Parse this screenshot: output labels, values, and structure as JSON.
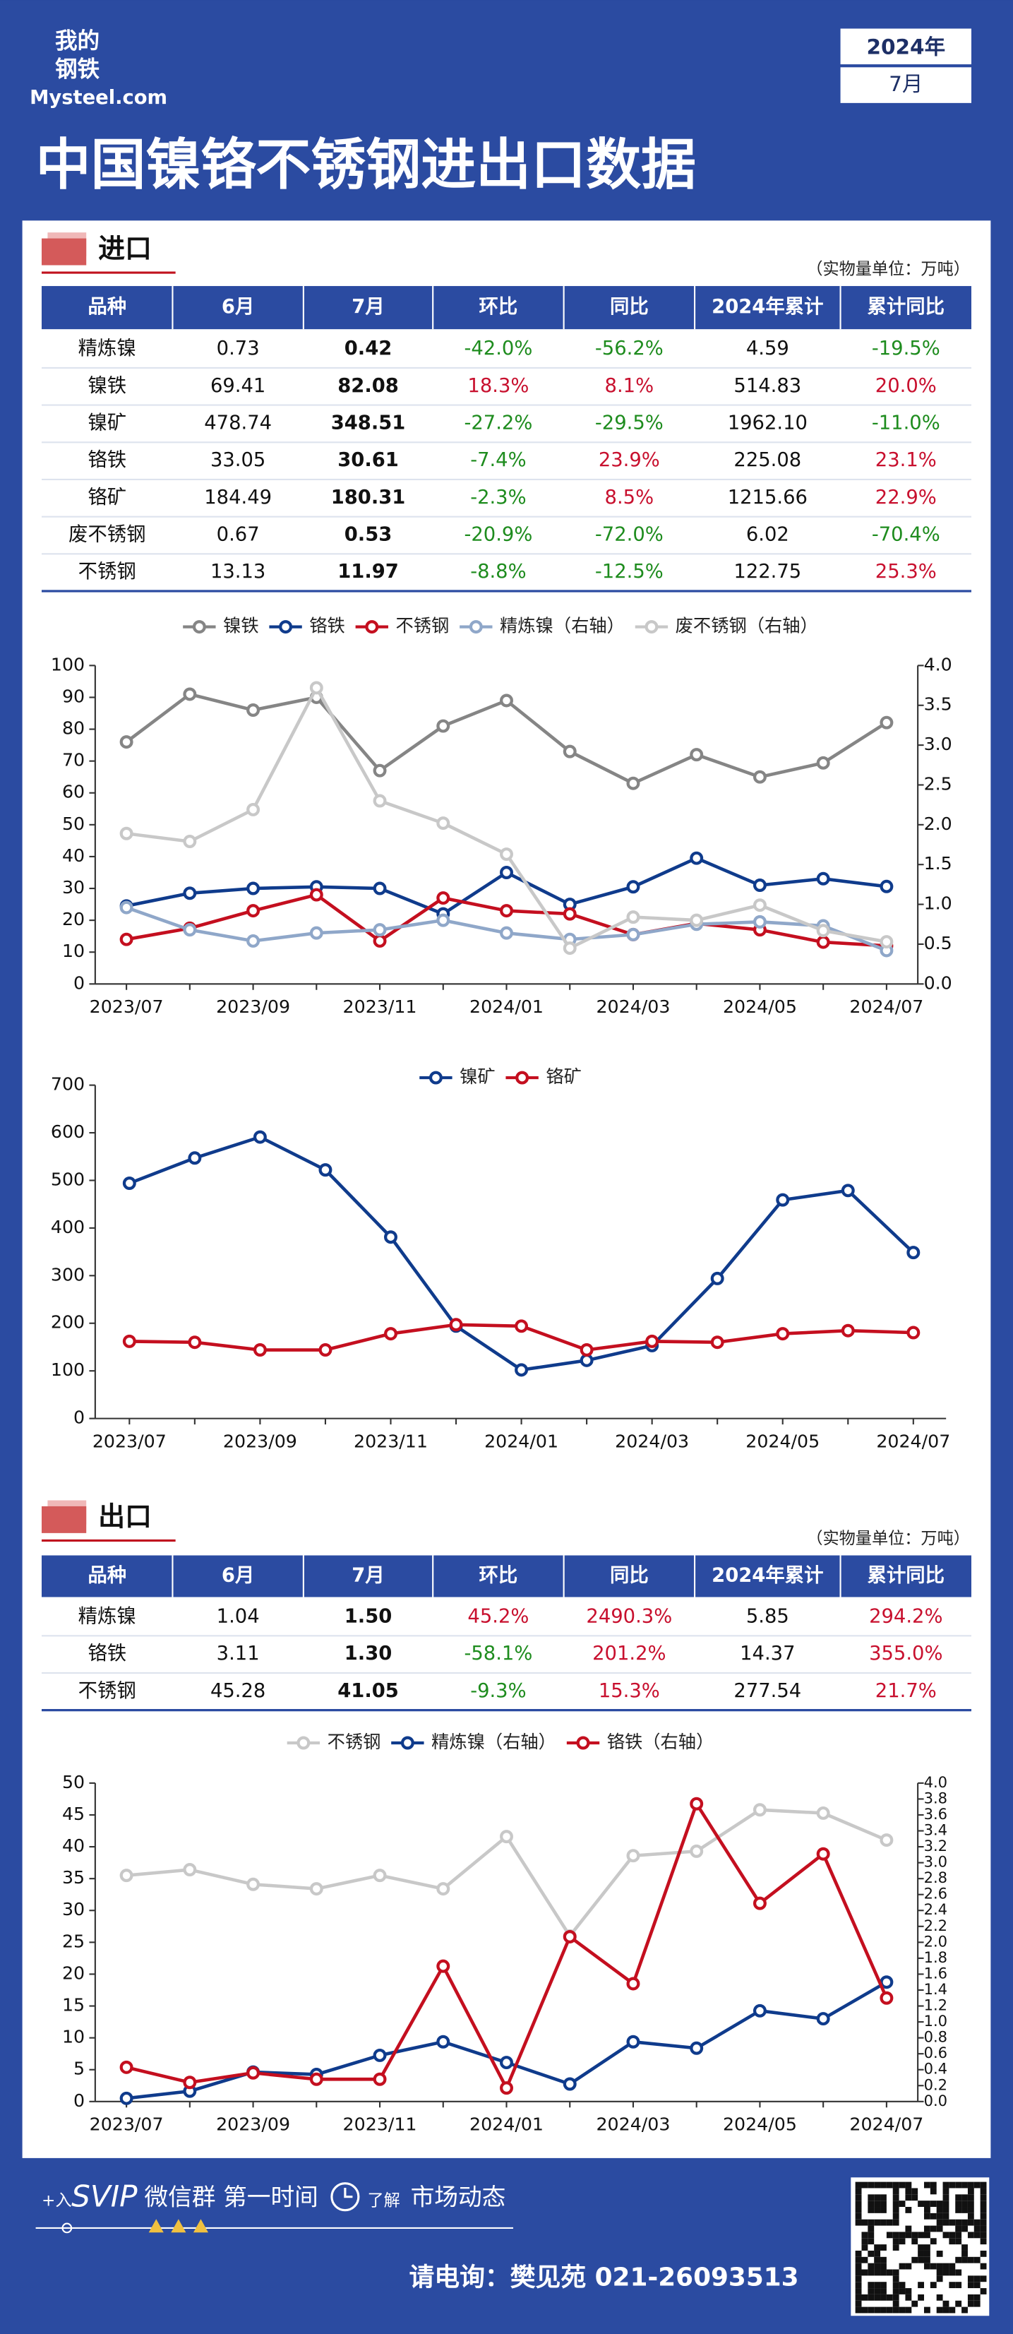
{
  "header": {
    "logo_line1": "我的",
    "logo_line2": "钢铁",
    "brand": "Mysteel.com",
    "year": "2024年",
    "month": "7月",
    "title": "中国镍铬不锈钢进出口数据"
  },
  "import": {
    "title": "进口",
    "unit": "（实物量单位：万吨）",
    "columns": [
      "品种",
      "6月",
      "7月",
      "环比",
      "同比",
      "2024年累计",
      "累计同比"
    ],
    "rows": [
      [
        "精炼镍",
        "0.73",
        "0.42",
        "-42.0%",
        "-56.2%",
        "4.59",
        "-19.5%"
      ],
      [
        "镍铁",
        "69.41",
        "82.08",
        "18.3%",
        "8.1%",
        "514.83",
        "20.0%"
      ],
      [
        "镍矿",
        "478.74",
        "348.51",
        "-27.2%",
        "-29.5%",
        "1962.10",
        "-11.0%"
      ],
      [
        "铬铁",
        "33.05",
        "30.61",
        "-7.4%",
        "23.9%",
        "225.08",
        "23.1%"
      ],
      [
        "铬矿",
        "184.49",
        "180.31",
        "-2.3%",
        "8.5%",
        "1215.66",
        "22.9%"
      ],
      [
        "废不锈钢",
        "0.67",
        "0.53",
        "-20.9%",
        "-72.0%",
        "6.02",
        "-70.4%"
      ],
      [
        "不锈钢",
        "13.13",
        "11.97",
        "-8.8%",
        "-12.5%",
        "122.75",
        "25.3%"
      ]
    ]
  },
  "export": {
    "title": "出口",
    "unit": "（实物量单位：万吨）",
    "columns": [
      "品种",
      "6月",
      "7月",
      "环比",
      "同比",
      "2024年累计",
      "累计同比"
    ],
    "rows": [
      [
        "精炼镍",
        "1.04",
        "1.50",
        "45.2%",
        "2490.3%",
        "5.85",
        "294.2%"
      ],
      [
        "铬铁",
        "3.11",
        "1.30",
        "-58.1%",
        "201.2%",
        "14.37",
        "355.0%"
      ],
      [
        "不锈钢",
        "45.28",
        "41.05",
        "-9.3%",
        "15.3%",
        "277.54",
        "21.7%"
      ]
    ]
  },
  "chart_data": [
    {
      "type": "line",
      "categories": [
        "2023/07",
        null,
        "2023/09",
        null,
        "2023/11",
        null,
        "2024/01",
        null,
        "2024/03",
        null,
        "2024/05",
        null,
        "2024/07"
      ],
      "ylim": [
        0,
        100
      ],
      "yticks": [
        0,
        10,
        20,
        30,
        40,
        50,
        60,
        70,
        80,
        90,
        100
      ],
      "y2lim": [
        0,
        4
      ],
      "y2ticks": [
        {
          "value": 0,
          "label": "0.0"
        },
        0.5,
        {
          "value": 1,
          "label": "1.0"
        },
        1.5,
        {
          "value": 2,
          "label": "2.0"
        },
        2.5,
        {
          "value": 3,
          "label": "3.0"
        },
        3.5,
        {
          "value": 4,
          "label": "4.0"
        }
      ],
      "series": [
        {
          "name": "镍铁",
          "color": "#858585",
          "values": [
            76,
            91,
            86,
            90,
            67,
            81,
            89,
            73,
            63,
            72,
            65,
            69.41,
            82.08
          ]
        },
        {
          "name": "铬铁",
          "color": "#0f3b8c",
          "values": [
            24.5,
            28.5,
            30,
            30.5,
            30,
            22,
            35,
            25,
            30.5,
            39.5,
            31,
            33.05,
            30.61
          ]
        },
        {
          "name": "不锈钢",
          "color": "#c40f1f",
          "values": [
            14,
            17.5,
            23,
            28,
            13.5,
            27,
            23,
            22,
            15.5,
            19,
            17,
            13.13,
            11.97
          ]
        },
        {
          "name": "精炼镍（右轴）",
          "color": "#8fa7c9",
          "axis": "y2",
          "values": [
            0.96,
            0.68,
            0.54,
            0.64,
            0.68,
            0.8,
            0.64,
            0.56,
            0.62,
            0.75,
            0.78,
            0.73,
            0.42
          ]
        },
        {
          "name": "废不锈钢（右轴）",
          "color": "#c8c8c8",
          "axis": "y2",
          "values": [
            1.89,
            1.79,
            2.19,
            3.72,
            2.3,
            2.02,
            1.63,
            0.45,
            0.84,
            0.8,
            0.99,
            0.67,
            0.53
          ]
        }
      ]
    },
    {
      "type": "line",
      "categories": [
        "2023/07",
        null,
        "2023/09",
        null,
        "2023/11",
        null,
        "2024/01",
        null,
        "2024/03",
        null,
        "2024/05",
        null,
        "2024/07"
      ],
      "ylim": [
        0,
        700
      ],
      "yticks": [
        0,
        100,
        200,
        300,
        400,
        500,
        600,
        700
      ],
      "series": [
        {
          "name": "镍矿",
          "color": "#0f3b8c",
          "values": [
            494,
            547,
            591,
            522,
            381,
            194,
            102,
            122,
            153,
            294,
            459,
            478.74,
            348.51
          ]
        },
        {
          "name": "铬矿",
          "color": "#c40f1f",
          "values": [
            162,
            160,
            144,
            144,
            178,
            197,
            194,
            144,
            162,
            160,
            178,
            184.49,
            180.31
          ]
        }
      ]
    },
    {
      "type": "line",
      "categories": [
        "2023/07",
        null,
        "2023/09",
        null,
        "2023/11",
        null,
        "2024/01",
        null,
        "2024/03",
        null,
        "2024/05",
        null,
        "2024/07"
      ],
      "ylim": [
        0,
        50
      ],
      "yticks": [
        0,
        5,
        10,
        15,
        20,
        25,
        30,
        35,
        40,
        45,
        50
      ],
      "y2lim": [
        0,
        4
      ],
      "y2ticks": [
        {
          "value": 0,
          "label": "0.0"
        },
        0.2,
        0.4,
        0.6,
        0.8,
        {
          "value": 1,
          "label": "1.0"
        },
        1.2,
        1.4,
        1.6,
        1.8,
        {
          "value": 2,
          "label": "2.0"
        },
        2.2,
        2.4,
        2.6,
        2.8,
        {
          "value": 3,
          "label": "3.0"
        },
        3.2,
        3.4,
        3.6,
        3.8,
        {
          "value": 4,
          "label": "4.0"
        }
      ],
      "series": [
        {
          "name": "不锈钢",
          "color": "#c8c8c8",
          "values": [
            35.5,
            36.4,
            34.1,
            33.4,
            35.5,
            33.4,
            41.6,
            26,
            38.6,
            39.3,
            45.8,
            45.28,
            41.05
          ]
        },
        {
          "name": "精炼镍（右轴）",
          "color": "#0f3b8c",
          "axis": "y2",
          "values": [
            0.04,
            0.13,
            0.37,
            0.34,
            0.58,
            0.75,
            0.49,
            0.22,
            0.75,
            0.67,
            1.14,
            1.04,
            1.5
          ]
        },
        {
          "name": "铬铁（右轴）",
          "color": "#c40f1f",
          "axis": "y2",
          "values": [
            0.43,
            0.24,
            0.36,
            0.28,
            0.28,
            1.7,
            0.17,
            2.07,
            1.48,
            3.74,
            2.49,
            3.11,
            1.3
          ]
        }
      ]
    }
  ],
  "footer": {
    "join": "+入",
    "vip": "SVIP",
    "group": "微信群",
    "first": "第一时间",
    "know": "了解",
    "market": "市场动态",
    "contact": "请电询：樊见苑 021-26093513"
  }
}
